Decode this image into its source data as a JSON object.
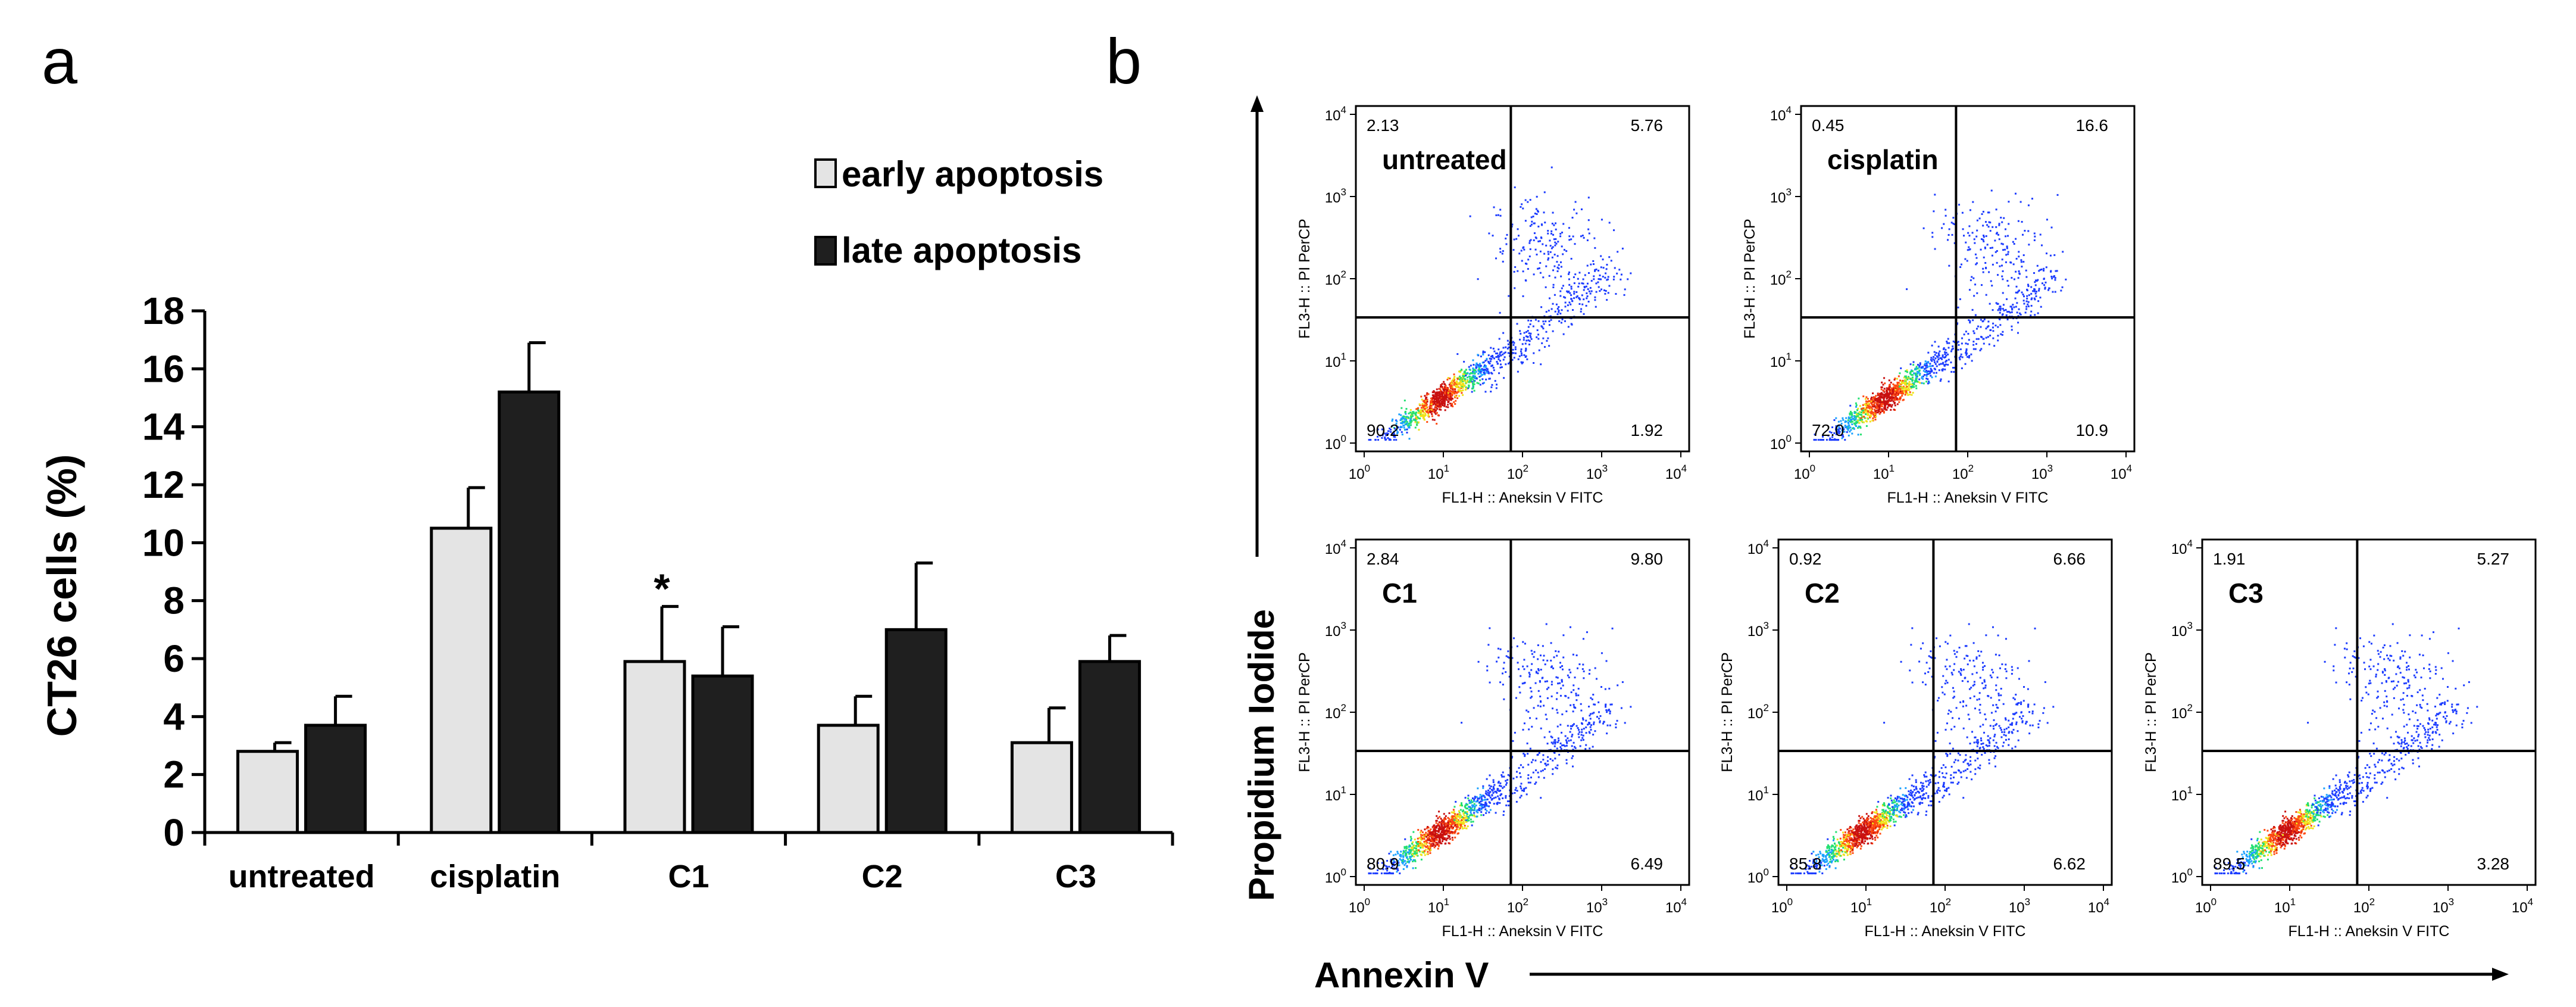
{
  "panel_a": {
    "label": "a",
    "significance_marker": "*",
    "chart_data": {
      "type": "bar",
      "title": "",
      "xlabel": "",
      "ylabel": "CT26 cells (%)",
      "ylim": [
        0,
        18
      ],
      "yticks": [
        "0",
        "2",
        "4",
        "6",
        "8",
        "10",
        "12",
        "14",
        "16",
        "18"
      ],
      "categories": [
        "untreated",
        "cisplatin",
        "C1",
        "C2",
        "C3"
      ],
      "legend_position": "top-right",
      "series": [
        {
          "name": "early apoptosis",
          "color": "#e4e4e4",
          "values": [
            2.8,
            10.5,
            5.9,
            3.7,
            3.1
          ],
          "errors": [
            0.3,
            1.4,
            1.9,
            1.0,
            1.2
          ]
        },
        {
          "name": "late apoptosis",
          "color": "#1f1f1f",
          "values": [
            3.7,
            15.2,
            5.4,
            7.0,
            5.9
          ],
          "errors": [
            1.0,
            1.7,
            1.7,
            2.3,
            0.9
          ]
        }
      ]
    }
  },
  "panel_b": {
    "label": "b",
    "y_arrow_label": "Propidium Iodide",
    "x_arrow_label": "Annexin V",
    "plot_xlabel": "FL1-H :: Aneksin V FITC",
    "plot_ylabel": "FL3-H :: PI PerCP",
    "tick_labels": [
      "10",
      "10",
      "10",
      "10",
      "10"
    ],
    "tick_exponents": [
      "0",
      "1",
      "2",
      "3",
      "4"
    ],
    "colormap": [
      "#1c3cff",
      "#18a0ff",
      "#22e070",
      "#f0e21a",
      "#ff4a10",
      "#c81010"
    ],
    "chart_data": [
      {
        "type": "scatter",
        "name": "untreated",
        "title": "untreated",
        "quadrants": {
          "upper_left": "2.13",
          "upper_right": "5.76",
          "lower_left": "90.2",
          "lower_right": "1.92"
        }
      },
      {
        "type": "scatter",
        "name": "cisplatin",
        "title": "cisplatin",
        "quadrants": {
          "upper_left": "0.45",
          "upper_right": "16.6",
          "lower_left": "72.0",
          "lower_right": "10.9"
        }
      },
      {
        "type": "scatter",
        "name": "C1",
        "title": "C1",
        "quadrants": {
          "upper_left": "2.84",
          "upper_right": "9.80",
          "lower_left": "80.9",
          "lower_right": "6.49"
        }
      },
      {
        "type": "scatter",
        "name": "C2",
        "title": "C2",
        "quadrants": {
          "upper_left": "0.92",
          "upper_right": "6.66",
          "lower_left": "85.8",
          "lower_right": "6.62"
        }
      },
      {
        "type": "scatter",
        "name": "C3",
        "title": "C3",
        "quadrants": {
          "upper_left": "1.91",
          "upper_right": "5.27",
          "lower_left": "89.5",
          "lower_right": "3.28"
        }
      }
    ]
  }
}
